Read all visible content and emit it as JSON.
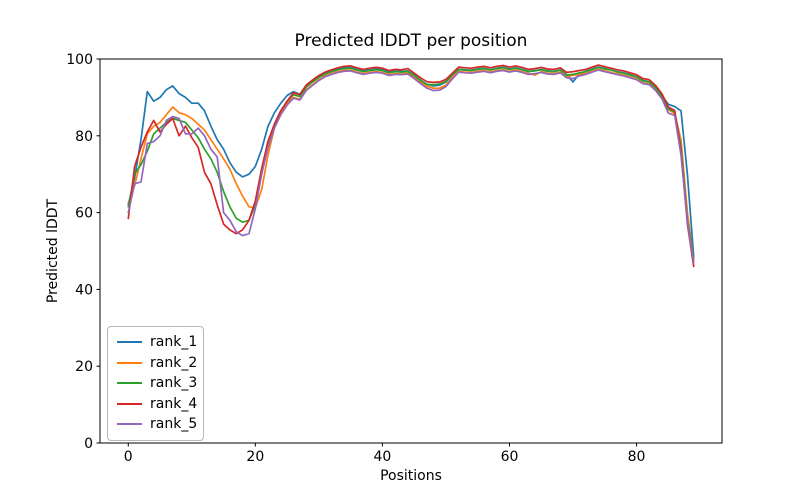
{
  "figure": {
    "background": "#ffffff"
  },
  "chart_data": {
    "type": "line",
    "title": "Predicted lDDT per position",
    "xlabel": "Positions",
    "ylabel": "Predicted lDDT",
    "xlim": [
      -4.45,
      93.45
    ],
    "ylim": [
      0,
      100
    ],
    "xticks": [
      0,
      20,
      40,
      60,
      80
    ],
    "yticks": [
      0,
      20,
      40,
      60,
      80,
      100
    ],
    "grid": false,
    "legend_position": "lower left",
    "axis_color": "#000000",
    "x": [
      0,
      1,
      2,
      3,
      4,
      5,
      6,
      7,
      8,
      9,
      10,
      11,
      12,
      13,
      14,
      15,
      16,
      17,
      18,
      19,
      20,
      21,
      22,
      23,
      24,
      25,
      26,
      27,
      28,
      29,
      30,
      31,
      32,
      33,
      34,
      35,
      36,
      37,
      38,
      39,
      40,
      41,
      42,
      43,
      44,
      45,
      46,
      47,
      48,
      49,
      50,
      51,
      52,
      53,
      54,
      55,
      56,
      57,
      58,
      59,
      60,
      61,
      62,
      63,
      64,
      65,
      66,
      67,
      68,
      69,
      70,
      71,
      72,
      73,
      74,
      75,
      76,
      77,
      78,
      79,
      80,
      81,
      82,
      83,
      84,
      85,
      86,
      87,
      88,
      89
    ],
    "series": [
      {
        "name": "rank_1",
        "color": "#1f77b4",
        "values": [
          62,
          69,
          79,
          91.5,
          89,
          90,
          92,
          93,
          91,
          90,
          88.5,
          88.5,
          86.5,
          82.5,
          79,
          76.5,
          73,
          70.5,
          69.3,
          70,
          72,
          76.5,
          82.5,
          86,
          88.5,
          90.5,
          91.5,
          90.8,
          93,
          94.2,
          95.4,
          96.3,
          96.9,
          97.4,
          97.7,
          97.8,
          97.3,
          96.9,
          97.2,
          97.4,
          97.2,
          96.6,
          96.9,
          96.8,
          96.9,
          95.8,
          94.5,
          93.4,
          93,
          93.2,
          94,
          95.8,
          97.3,
          97.2,
          97.1,
          97.4,
          97.6,
          97.2,
          97.6,
          97.8,
          97.4,
          97.7,
          97.3,
          96.8,
          97,
          97.3,
          96.9,
          96.8,
          97.2,
          95.9,
          94,
          96.2,
          96.8,
          97.4,
          97.9,
          97.5,
          97.1,
          96.7,
          96.4,
          95.9,
          95.4,
          94.4,
          94.1,
          92.6,
          90.4,
          88.2,
          87.6,
          86.5,
          70,
          48.5
        ]
      },
      {
        "name": "rank_2",
        "color": "#ff7f0e",
        "values": [
          62.5,
          67,
          74,
          80.5,
          82.5,
          83.5,
          85.5,
          87.5,
          86,
          85.5,
          84.5,
          83,
          81.5,
          79,
          76.5,
          74,
          71.3,
          67.5,
          64.3,
          61.5,
          61.2,
          66,
          75,
          82,
          86,
          88.5,
          90,
          89.5,
          92,
          93.3,
          94.6,
          95.6,
          96.2,
          96.7,
          97,
          97.1,
          96.6,
          96.2,
          96.5,
          96.7,
          96.5,
          95.9,
          96.2,
          96.1,
          96.4,
          95.2,
          94,
          92.9,
          92.4,
          92.4,
          93.2,
          95.2,
          96.8,
          96.6,
          96.5,
          96.8,
          97,
          96.6,
          97,
          97.2,
          96.8,
          97.1,
          96.7,
          96.2,
          95.8,
          96.7,
          96.3,
          96.2,
          96.6,
          95.3,
          95.8,
          96,
          96.2,
          96.8,
          97.3,
          96.9,
          96.5,
          96.1,
          95.8,
          95.3,
          94.8,
          93.8,
          93.5,
          92,
          89.8,
          86.8,
          85.8,
          79,
          60,
          47.5
        ]
      },
      {
        "name": "rank_3",
        "color": "#2ca02c",
        "values": [
          61.5,
          70,
          72.5,
          76,
          80.5,
          82,
          83.5,
          84.5,
          84,
          83.5,
          81.5,
          79.5,
          76.5,
          74,
          70.5,
          65.5,
          61.5,
          58.5,
          57.5,
          58,
          62,
          71,
          78.5,
          83,
          86.5,
          89,
          90.7,
          90.2,
          92.7,
          94,
          95.2,
          96.1,
          96.7,
          97.2,
          97.5,
          97.6,
          97.1,
          96.7,
          97,
          97.2,
          97,
          96.4,
          96.7,
          96.6,
          96.8,
          95.7,
          94.4,
          93.4,
          93.3,
          93.5,
          94.2,
          95.9,
          97.3,
          97.1,
          97,
          97.3,
          97.5,
          97.1,
          97.5,
          97.7,
          97.3,
          97.6,
          97.2,
          96.7,
          96.9,
          97.2,
          96.8,
          96.7,
          97.1,
          95.8,
          96,
          96.4,
          96.7,
          97.3,
          97.8,
          97.4,
          97.1,
          96.6,
          96.3,
          95.8,
          95.3,
          94.3,
          94,
          92.5,
          90.2,
          87,
          86.2,
          77,
          58,
          48
        ]
      },
      {
        "name": "rank_4",
        "color": "#d62728",
        "values": [
          58.5,
          72,
          77,
          81,
          84,
          81,
          83,
          84.5,
          80,
          82.5,
          79.5,
          77,
          70.5,
          67.5,
          62,
          57,
          55.5,
          54.5,
          55.5,
          58,
          63,
          71.5,
          78.5,
          83,
          86.5,
          89,
          91.2,
          90.7,
          93.2,
          94.5,
          95.7,
          96.6,
          97.2,
          97.7,
          98.1,
          98.2,
          97.7,
          97.3,
          97.6,
          97.8,
          97.6,
          97,
          97.3,
          97.2,
          97.5,
          96.3,
          95.1,
          94.1,
          93.9,
          94,
          94.7,
          96.3,
          97.9,
          97.7,
          97.6,
          97.9,
          98.1,
          97.7,
          98.1,
          98.3,
          97.9,
          98.2,
          97.8,
          97.3,
          97.5,
          97.8,
          97.4,
          97.3,
          97.7,
          96.5,
          96.7,
          97,
          97.3,
          97.9,
          98.4,
          98,
          97.6,
          97.2,
          96.9,
          96.4,
          95.9,
          94.9,
          94.6,
          93.1,
          90.9,
          87.5,
          86.6,
          76,
          57,
          46
        ]
      },
      {
        "name": "rank_5",
        "color": "#9467bd",
        "values": [
          60,
          67.5,
          68,
          78,
          78.5,
          80,
          84,
          85,
          84.5,
          80.5,
          80.5,
          82,
          80,
          76.5,
          74.5,
          60,
          58,
          55,
          54,
          54.5,
          61,
          70,
          77,
          82,
          85.5,
          88,
          89.8,
          89.3,
          91.8,
          93.1,
          94.4,
          95.4,
          96,
          96.5,
          96.8,
          96.9,
          96.4,
          96,
          96.3,
          96.5,
          96.3,
          95.7,
          96,
          95.9,
          96.1,
          94.9,
          93.6,
          92.4,
          91.8,
          91.9,
          92.8,
          94.8,
          96.6,
          96.4,
          96.3,
          96.6,
          96.8,
          96.4,
          96.8,
          97,
          96.6,
          96.9,
          96.5,
          96,
          96.2,
          96.5,
          96.1,
          96,
          96.4,
          95.1,
          94.9,
          95.6,
          96,
          96.6,
          97.1,
          96.7,
          96.3,
          95.9,
          95.6,
          95.1,
          94.6,
          93.6,
          93.3,
          91.8,
          89.6,
          85.9,
          85.3,
          75,
          57.5,
          47
        ]
      }
    ]
  }
}
